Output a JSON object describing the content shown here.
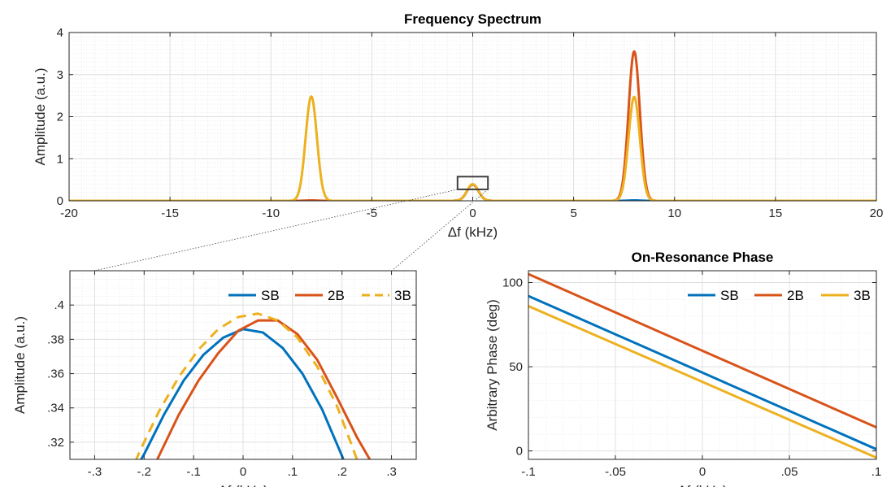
{
  "chart_data": [
    {
      "id": "spectrum",
      "type": "line",
      "title": "Frequency Spectrum",
      "xlabel": "Δf (kHz)",
      "ylabel": "Amplitude (a.u.)",
      "xlim": [
        -20,
        20
      ],
      "ylim": [
        0,
        4
      ],
      "xticks": [
        -20,
        -15,
        -10,
        -5,
        0,
        5,
        10,
        15,
        20
      ],
      "yticks": [
        0,
        1,
        2,
        3,
        4
      ],
      "grid": true,
      "minor_grid": true,
      "inset_box": {
        "x": [
          -0.35,
          0.35
        ],
        "y": [
          0.31,
          0.42
        ]
      },
      "series": [
        {
          "key": "SB",
          "color": "#0072BD",
          "dashed": false,
          "peaks": [
            {
              "center": 0,
              "amp": 0.386,
              "width": 0.28
            },
            {
              "center": 8.0,
              "amp": 0.01,
              "width": 0.28
            }
          ]
        },
        {
          "key": "2B",
          "color": "#D95319",
          "dashed": false,
          "peaks": [
            {
              "center": 0,
              "amp": 0.39,
              "width": 0.28
            },
            {
              "center": -8.0,
              "amp": 0.01,
              "width": 0.28
            },
            {
              "center": 8.0,
              "amp": 3.55,
              "width": 0.28
            }
          ]
        },
        {
          "key": "3B",
          "color": "#EDB120",
          "dashed": false,
          "peaks": [
            {
              "center": 0,
              "amp": 0.395,
              "width": 0.28
            },
            {
              "center": -8.0,
              "amp": 2.48,
              "width": 0.28
            },
            {
              "center": 8.0,
              "amp": 2.47,
              "width": 0.28
            }
          ]
        }
      ]
    },
    {
      "id": "zoom",
      "type": "line",
      "title": "",
      "xlabel": "Δf (kHz)",
      "ylabel": "Amplitude (a.u.)",
      "xlim": [
        -0.35,
        0.35
      ],
      "ylim": [
        0.31,
        0.42
      ],
      "xticks": [
        -0.3,
        -0.2,
        -0.1,
        0,
        0.1,
        0.2,
        0.3
      ],
      "yticks": [
        0.32,
        0.34,
        0.36,
        0.38,
        0.4
      ],
      "grid": true,
      "minor_grid": true,
      "legend": "top-right",
      "series": [
        {
          "name": "SB",
          "color": "#0072BD",
          "dashed": false,
          "x": [
            -0.22,
            -0.2,
            -0.16,
            -0.12,
            -0.08,
            -0.04,
            0,
            0.04,
            0.08,
            0.12,
            0.16,
            0.2,
            0.22
          ],
          "y": [
            0.303,
            0.313,
            0.336,
            0.356,
            0.371,
            0.381,
            0.386,
            0.384,
            0.375,
            0.36,
            0.339,
            0.312,
            0.296
          ]
        },
        {
          "name": "2B",
          "color": "#D95319",
          "dashed": false,
          "x": [
            -0.19,
            -0.17,
            -0.13,
            -0.09,
            -0.05,
            -0.01,
            0.03,
            0.07,
            0.11,
            0.15,
            0.19,
            0.23,
            0.26
          ],
          "y": [
            0.3,
            0.312,
            0.336,
            0.356,
            0.372,
            0.385,
            0.391,
            0.391,
            0.383,
            0.368,
            0.346,
            0.323,
            0.308
          ]
        },
        {
          "name": "3B",
          "color": "#EDB120",
          "dashed": true,
          "x": [
            -0.23,
            -0.21,
            -0.17,
            -0.13,
            -0.09,
            -0.05,
            -0.01,
            0.03,
            0.07,
            0.11,
            0.15,
            0.19,
            0.22,
            0.24
          ],
          "y": [
            0.3,
            0.314,
            0.338,
            0.358,
            0.374,
            0.386,
            0.393,
            0.395,
            0.391,
            0.381,
            0.364,
            0.341,
            0.318,
            0.302
          ]
        }
      ]
    },
    {
      "id": "phase",
      "type": "line",
      "title": "On-Resonance Phase",
      "xlabel": "Δf (kHz)",
      "ylabel": "Arbitrary Phase (deg)",
      "xlim": [
        -0.1,
        0.1
      ],
      "ylim": [
        -5,
        107
      ],
      "xticks": [
        -0.1,
        -0.05,
        0,
        0.05,
        0.1
      ],
      "yticks": [
        0,
        50,
        100
      ],
      "grid": true,
      "minor_grid": true,
      "legend": "top-right",
      "series": [
        {
          "name": "SB",
          "color": "#0072BD",
          "dashed": false,
          "x": [
            -0.1,
            0.1
          ],
          "y": [
            92,
            1
          ]
        },
        {
          "name": "2B",
          "color": "#D95319",
          "dashed": false,
          "x": [
            -0.1,
            0.1
          ],
          "y": [
            105,
            14
          ]
        },
        {
          "name": "3B",
          "color": "#EDB120",
          "dashed": false,
          "x": [
            -0.1,
            0.1
          ],
          "y": [
            86,
            -4
          ]
        }
      ]
    }
  ]
}
